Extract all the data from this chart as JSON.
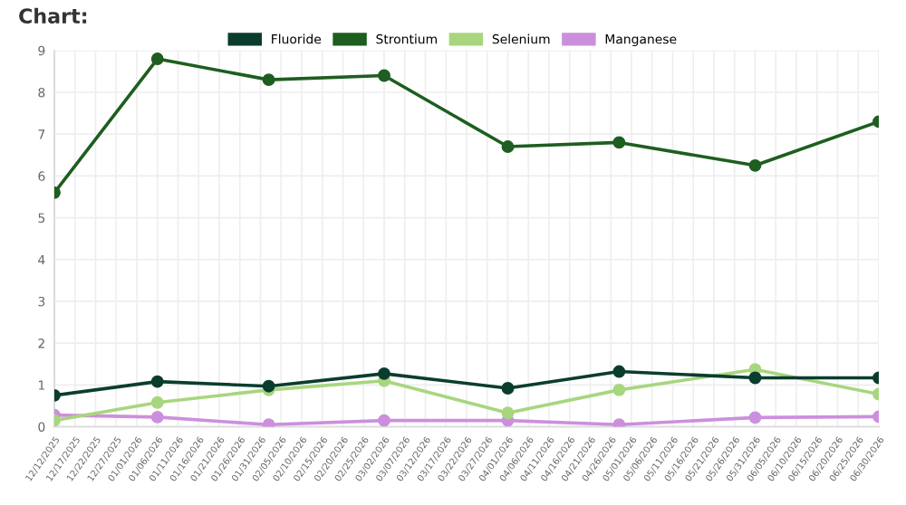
{
  "chart_data": {
    "type": "line",
    "title": "Chart:",
    "x": [
      "2025-12-12",
      "2026-01-06",
      "2026-02-02",
      "2026-03-02",
      "2026-04-01",
      "2026-04-28",
      "2026-05-31",
      "2026-06-30"
    ],
    "series": [
      {
        "name": "Fluoride",
        "color": "#0b3d2e",
        "values": [
          0.75,
          1.08,
          0.97,
          1.27,
          0.92,
          1.32,
          1.17,
          1.17
        ]
      },
      {
        "name": "Strontium",
        "color": "#1e5e20",
        "values": [
          5.6,
          8.8,
          8.3,
          8.4,
          6.7,
          6.8,
          6.25,
          7.3
        ]
      },
      {
        "name": "Selenium",
        "color": "#a8d67e",
        "values": [
          0.15,
          0.58,
          0.88,
          1.1,
          0.33,
          0.88,
          1.37,
          0.78
        ]
      },
      {
        "name": "Manganese",
        "color": "#cc8fdd",
        "values": [
          0.28,
          0.23,
          0.05,
          0.15,
          0.15,
          0.05,
          0.22,
          0.24
        ]
      }
    ],
    "xlim": [
      "2025-12-12",
      "2026-06-30"
    ],
    "xticks": [
      {
        "value": "2025-12-12",
        "label": "12/12/2025"
      },
      {
        "value": "2025-12-17",
        "label": "12/17/2025"
      },
      {
        "value": "2025-12-22",
        "label": "12/22/2025"
      },
      {
        "value": "2025-12-27",
        "label": "12/27/2025"
      },
      {
        "value": "2026-01-01",
        "label": "01/01/2026"
      },
      {
        "value": "2026-01-06",
        "label": "01/06/2026"
      },
      {
        "value": "2026-01-11",
        "label": "01/11/2026"
      },
      {
        "value": "2026-01-16",
        "label": "01/16/2026"
      },
      {
        "value": "2026-01-21",
        "label": "01/21/2026"
      },
      {
        "value": "2026-01-26",
        "label": "01/26/2026"
      },
      {
        "value": "2026-01-31",
        "label": "01/31/2026"
      },
      {
        "value": "2026-02-05",
        "label": "02/05/2026"
      },
      {
        "value": "2026-02-10",
        "label": "02/10/2026"
      },
      {
        "value": "2026-02-15",
        "label": "02/15/2026"
      },
      {
        "value": "2026-02-20",
        "label": "02/20/2026"
      },
      {
        "value": "2026-02-25",
        "label": "02/25/2026"
      },
      {
        "value": "2026-03-02",
        "label": "03/02/2026"
      },
      {
        "value": "2026-03-07",
        "label": "03/07/2026"
      },
      {
        "value": "2026-03-12",
        "label": "03/12/2026"
      },
      {
        "value": "2026-03-17",
        "label": "03/17/2026"
      },
      {
        "value": "2026-03-22",
        "label": "03/22/2026"
      },
      {
        "value": "2026-03-27",
        "label": "03/27/2026"
      },
      {
        "value": "2026-04-01",
        "label": "04/01/2026"
      },
      {
        "value": "2026-04-06",
        "label": "04/06/2026"
      },
      {
        "value": "2026-04-11",
        "label": "04/11/2026"
      },
      {
        "value": "2026-04-16",
        "label": "04/16/2026"
      },
      {
        "value": "2026-04-21",
        "label": "04/21/2026"
      },
      {
        "value": "2026-04-26",
        "label": "04/26/2026"
      },
      {
        "value": "2026-05-01",
        "label": "05/01/2026"
      },
      {
        "value": "2026-05-06",
        "label": "05/06/2026"
      },
      {
        "value": "2026-05-11",
        "label": "05/11/2026"
      },
      {
        "value": "2026-05-16",
        "label": "05/16/2026"
      },
      {
        "value": "2026-05-21",
        "label": "05/21/2026"
      },
      {
        "value": "2026-05-26",
        "label": "05/26/2026"
      },
      {
        "value": "2026-05-31",
        "label": "05/31/2026"
      },
      {
        "value": "2026-06-05",
        "label": "06/05/2026"
      },
      {
        "value": "2026-06-10",
        "label": "06/10/2026"
      },
      {
        "value": "2026-06-15",
        "label": "06/15/2026"
      },
      {
        "value": "2026-06-20",
        "label": "06/20/2026"
      },
      {
        "value": "2026-06-25",
        "label": "06/25/2026"
      },
      {
        "value": "2026-06-30",
        "label": "06/30/2026"
      }
    ],
    "ylim": [
      0,
      9
    ],
    "yticks": [
      0,
      1,
      2,
      3,
      4,
      5,
      6,
      7,
      8,
      9
    ],
    "grid": true,
    "legend": "top",
    "marker": "circle",
    "line_style": "solid"
  }
}
